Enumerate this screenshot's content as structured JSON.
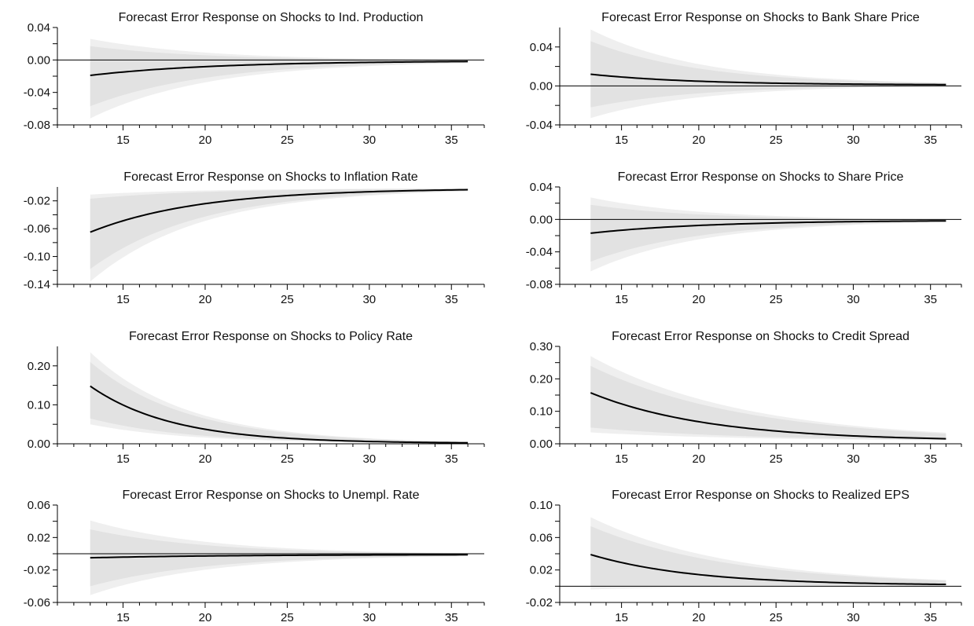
{
  "chart_data": [
    {
      "type": "area",
      "title": "Forecast Error Response on Shocks to Ind. Production",
      "xlim": [
        11,
        37
      ],
      "ylim": [
        -0.08,
        0.04
      ],
      "xticks": [
        15,
        20,
        25,
        30,
        35
      ],
      "yticks": [
        -0.08,
        -0.04,
        0.0,
        0.04
      ],
      "ytick_labels": [
        "-0.08",
        "-0.04",
        "0.00",
        "0.04"
      ],
      "zero_line": true,
      "x_start": 13,
      "x_end": 36,
      "response": {
        "start": -0.019,
        "end": -0.001,
        "rate": 0.13
      },
      "inner_band": {
        "lower": -0.057,
        "upper": 0.017
      },
      "outer_band": {
        "lower": -0.072,
        "upper": 0.026
      },
      "band_rate": 0.14
    },
    {
      "type": "area",
      "title": "Forecast Error Response on Shocks to Bank Share Price",
      "xlim": [
        11,
        37
      ],
      "ylim": [
        -0.04,
        0.06
      ],
      "xticks": [
        15,
        20,
        25,
        30,
        35
      ],
      "yticks": [
        -0.04,
        0.0,
        0.04
      ],
      "ytick_labels": [
        "-0.04",
        "0.00",
        "0.04"
      ],
      "zero_line": true,
      "x_start": 13,
      "x_end": 36,
      "response": {
        "start": 0.012,
        "end": 0.001,
        "rate": 0.15
      },
      "inner_band": {
        "lower": -0.022,
        "upper": 0.046
      },
      "outer_band": {
        "lower": -0.033,
        "upper": 0.058
      },
      "band_rate": 0.14
    },
    {
      "type": "area",
      "title": "Forecast Error Response on Shocks to Inflation Rate",
      "xlim": [
        11,
        37
      ],
      "ylim": [
        -0.14,
        0.0
      ],
      "xticks": [
        15,
        20,
        25,
        30,
        35
      ],
      "yticks": [
        -0.14,
        -0.1,
        -0.06,
        -0.02
      ],
      "ytick_labels": [
        "-0.14",
        "-0.10",
        "-0.06",
        "-0.02"
      ],
      "zero_line": false,
      "x_start": 13,
      "x_end": 36,
      "response": {
        "start": -0.065,
        "end": -0.002,
        "rate": 0.15
      },
      "inner_band": {
        "lower": -0.118,
        "upper": -0.017
      },
      "outer_band": {
        "lower": -0.136,
        "upper": -0.011
      },
      "band_rate": 0.15
    },
    {
      "type": "area",
      "title": "Forecast Error Response on Shocks to Share Price",
      "xlim": [
        11,
        37
      ],
      "ylim": [
        -0.08,
        0.04
      ],
      "xticks": [
        15,
        20,
        25,
        30,
        35
      ],
      "yticks": [
        -0.08,
        -0.04,
        0.0,
        0.04
      ],
      "ytick_labels": [
        "-0.08",
        "-0.04",
        "0.00",
        "0.04"
      ],
      "zero_line": true,
      "x_start": 13,
      "x_end": 36,
      "response": {
        "start": -0.017,
        "end": -0.001,
        "rate": 0.13
      },
      "inner_band": {
        "lower": -0.052,
        "upper": 0.018
      },
      "outer_band": {
        "lower": -0.064,
        "upper": 0.027
      },
      "band_rate": 0.14
    },
    {
      "type": "area",
      "title": "Forecast Error Response on Shocks to Policy Rate",
      "xlim": [
        11,
        37
      ],
      "ylim": [
        0.0,
        0.25
      ],
      "xticks": [
        15,
        20,
        25,
        30,
        35
      ],
      "yticks": [
        0.0,
        0.1,
        0.2
      ],
      "ytick_labels": [
        "0.00",
        "0.10",
        "0.20"
      ],
      "zero_line": false,
      "x_start": 13,
      "x_end": 36,
      "response": {
        "start": 0.148,
        "end": 0.001,
        "rate": 0.2
      },
      "inner_band": {
        "lower": 0.065,
        "upper": 0.21
      },
      "outer_band": {
        "lower": 0.05,
        "upper": 0.235
      },
      "band_rate": 0.17
    },
    {
      "type": "area",
      "title": "Forecast Error Response on Shocks to Credit Spread",
      "xlim": [
        11,
        37
      ],
      "ylim": [
        0.0,
        0.3
      ],
      "xticks": [
        15,
        20,
        25,
        30,
        35
      ],
      "yticks": [
        0.0,
        0.1,
        0.2,
        0.3
      ],
      "ytick_labels": [
        "0.00",
        "0.10",
        "0.20",
        "0.30"
      ],
      "zero_line": false,
      "x_start": 13,
      "x_end": 36,
      "response": {
        "start": 0.157,
        "end": 0.008,
        "rate": 0.13
      },
      "inner_band": {
        "lower": 0.05,
        "upper": 0.24
      },
      "outer_band": {
        "lower": 0.035,
        "upper": 0.27
      },
      "band_rate": 0.1
    },
    {
      "type": "area",
      "title": "Forecast Error Response on Shocks to Unempl. Rate",
      "xlim": [
        11,
        37
      ],
      "ylim": [
        -0.06,
        0.06
      ],
      "xticks": [
        15,
        20,
        25,
        30,
        35
      ],
      "yticks": [
        -0.06,
        -0.02,
        0.02,
        0.06
      ],
      "ytick_labels": [
        "-0.06",
        "-0.02",
        "0.02",
        "0.06"
      ],
      "zero_line": true,
      "x_start": 13,
      "x_end": 36,
      "response": {
        "start": -0.005,
        "end": -0.001,
        "rate": 0.12
      },
      "inner_band": {
        "lower": -0.04,
        "upper": 0.03
      },
      "outer_band": {
        "lower": -0.051,
        "upper": 0.041
      },
      "band_rate": 0.14
    },
    {
      "type": "area",
      "title": "Forecast Error Response on Shocks to Realized EPS",
      "xlim": [
        11,
        37
      ],
      "ylim": [
        -0.02,
        0.1
      ],
      "xticks": [
        15,
        20,
        25,
        30,
        35
      ],
      "yticks": [
        -0.02,
        0.02,
        0.06,
        0.1
      ],
      "ytick_labels": [
        "-0.02",
        "0.02",
        "0.06",
        "0.10"
      ],
      "zero_line": true,
      "x_start": 13,
      "x_end": 36,
      "response": {
        "start": 0.039,
        "end": 0.001,
        "rate": 0.15
      },
      "inner_band": {
        "lower": -0.001,
        "upper": 0.074
      },
      "outer_band": {
        "lower": -0.004,
        "upper": 0.085
      },
      "band_rate": 0.11
    }
  ],
  "colors": {
    "outer_band": "#efefef",
    "inner_band": "#e2e2e2",
    "line": "#000000"
  }
}
